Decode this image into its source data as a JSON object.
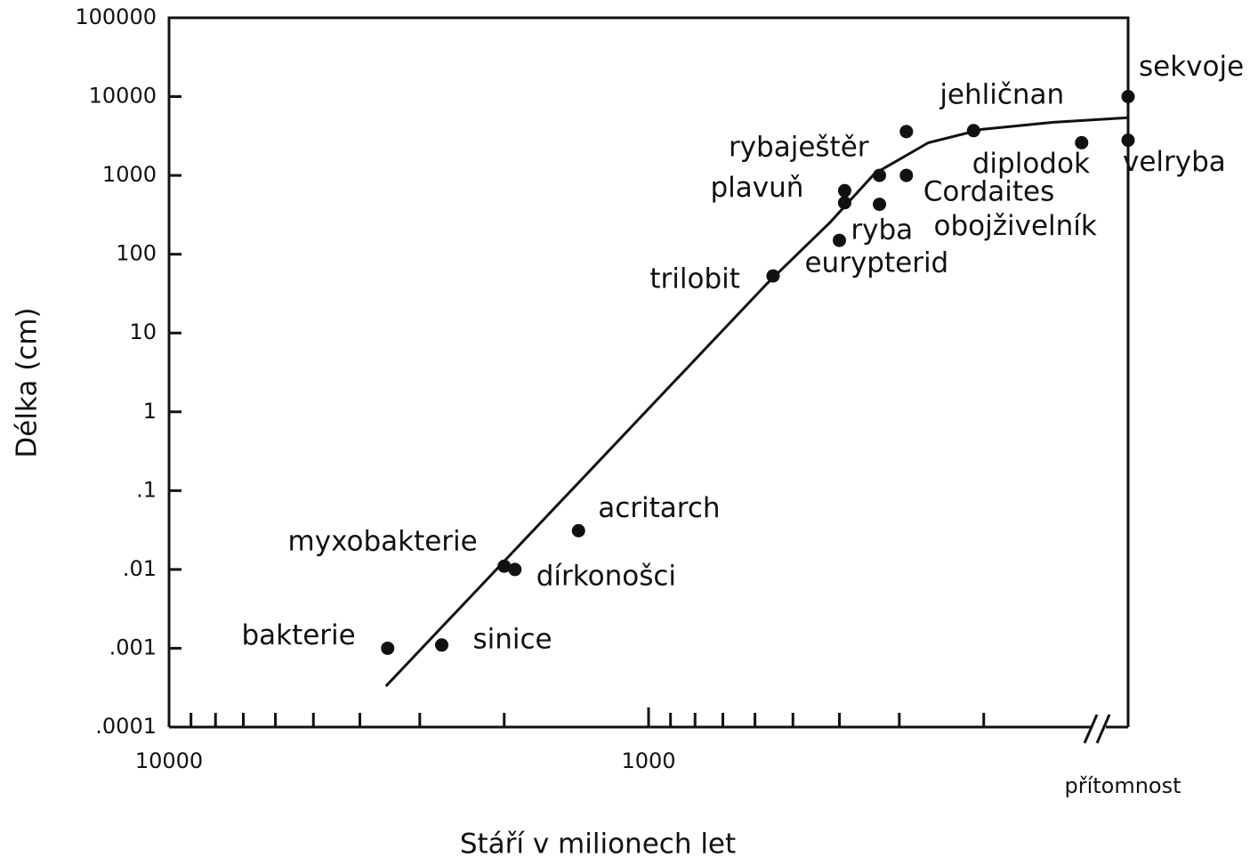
{
  "chart_data": {
    "type": "scatter",
    "x_label": "Stáří v milionech let",
    "y_label": "Délka (cm)",
    "xscale": "log",
    "yscale": "log",
    "axis_break": true,
    "xlim": [
      10000,
      100
    ],
    "xticks": [
      10000,
      1000,
      {
        "value": 0,
        "label": "přítomnost"
      }
    ],
    "xminorticks": [
      9000,
      8000,
      7000,
      6000,
      5000,
      4000,
      3000,
      2000,
      900,
      800,
      700,
      600,
      500,
      400,
      300,
      200
    ],
    "ylim": [
      0.0001,
      100000
    ],
    "yticks": [
      {
        "value": 0.0001,
        "label": ".0001"
      },
      {
        "value": 0.001,
        "label": ".001"
      },
      {
        "value": 0.01,
        "label": ".01"
      },
      {
        "value": 0.1,
        "label": ".1"
      },
      1,
      10,
      100,
      1000,
      10000,
      100000
    ],
    "color": "#111111",
    "labels": [
      "bakterie",
      "sinice",
      "myxobakterie",
      "dírkonošci",
      "acritarch",
      "trilobit",
      "eurypterid",
      "ryba",
      "plavuň",
      "obojživelník",
      "rybaještěr",
      "Cordaites",
      null,
      "jehličnan",
      "diplodok",
      "sekvoje",
      "velryba"
    ],
    "x": [
      3500,
      2700,
      2000,
      1900,
      1400,
      550,
      400,
      390,
      390,
      330,
      330,
      290,
      290,
      210,
      125,
      0,
      0
    ],
    "y": [
      0.001,
      0.0011,
      0.011,
      0.01,
      0.031,
      53,
      150,
      450,
      640,
      430,
      1000,
      1000,
      3600,
      3700,
      2600,
      10000,
      2800
    ],
    "curve": {
      "x": [
        3530,
        565,
        419,
        338,
        261,
        202,
        143,
        0
      ],
      "y": [
        0.00033,
        43,
        251,
        1050,
        2600,
        3840,
        4730,
        5400
      ]
    }
  }
}
